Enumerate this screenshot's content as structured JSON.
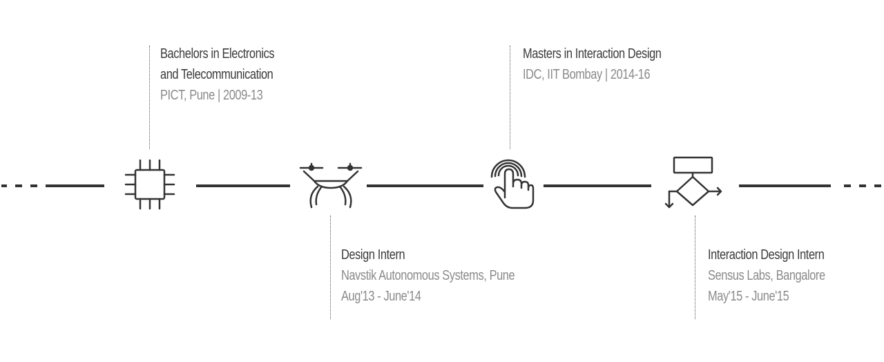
{
  "colors": {
    "line": "#333333",
    "title": "#3a3a3a",
    "subtitle": "#8a8a8a"
  },
  "milestones": [
    {
      "icon": "microchip-icon",
      "title_lines": [
        "Bachelors in Electronics",
        "and Telecommunication"
      ],
      "subtitle_lines": [
        "PICT, Pune | 2009-13"
      ]
    },
    {
      "icon": "drone-icon",
      "title_lines": [
        "Design Intern"
      ],
      "subtitle_lines": [
        "Navstik Autonomous Systems, Pune",
        "Aug'13 - June'14"
      ]
    },
    {
      "icon": "touch-gesture-icon",
      "title_lines": [
        "Masters in Interaction Design"
      ],
      "subtitle_lines": [
        "IDC, IIT Bombay | 2014-16"
      ]
    },
    {
      "icon": "flowchart-icon",
      "title_lines": [
        "Interaction Design Intern"
      ],
      "subtitle_lines": [
        "Sensus Labs, Bangalore",
        "May'15 - June'15"
      ]
    }
  ]
}
